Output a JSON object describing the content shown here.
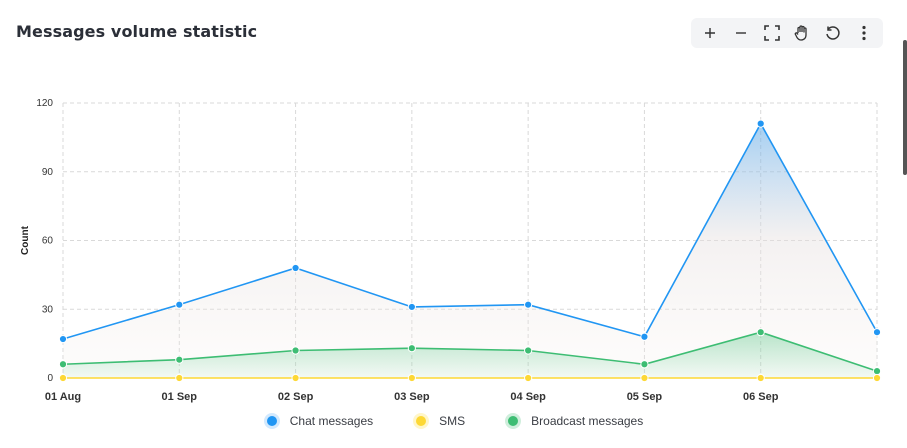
{
  "header": {
    "title": "Messages volume statistic"
  },
  "toolbar": {
    "buttons": [
      {
        "name": "zoom-in-button",
        "icon": "plus-icon"
      },
      {
        "name": "zoom-out-button",
        "icon": "minus-icon"
      },
      {
        "name": "fullscreen-button",
        "icon": "fullscreen-icon"
      },
      {
        "name": "pan-button",
        "icon": "hand-icon"
      },
      {
        "name": "reset-button",
        "icon": "reset-icon"
      },
      {
        "name": "menu-button",
        "icon": "more-vertical-icon"
      }
    ]
  },
  "colors": {
    "chat": "#2196f3",
    "sms": "#fdd835",
    "broadcast": "#3dbd73",
    "grid": "#d9d9d9",
    "axis_text": "#333333"
  },
  "chart_data": {
    "type": "area",
    "title": "",
    "xlabel": "",
    "ylabel": "Count",
    "ylim": [
      0,
      120
    ],
    "yticks": [
      0,
      30,
      60,
      90,
      120
    ],
    "categories": [
      "01 Aug",
      "01 Sep",
      "02 Sep",
      "03 Sep",
      "04 Sep",
      "05 Sep",
      "06 Sep",
      ""
    ],
    "grid": true,
    "legend_position": "bottom",
    "series": [
      {
        "name": "Chat messages",
        "color": "#2196f3",
        "values": [
          17,
          32,
          48,
          31,
          32,
          18,
          111,
          20
        ]
      },
      {
        "name": "SMS",
        "color": "#fdd835",
        "values": [
          0,
          0,
          0,
          0,
          0,
          0,
          0,
          0
        ]
      },
      {
        "name": "Broadcast messages",
        "color": "#3dbd73",
        "values": [
          6,
          8,
          12,
          13,
          12,
          6,
          20,
          3
        ]
      }
    ]
  }
}
